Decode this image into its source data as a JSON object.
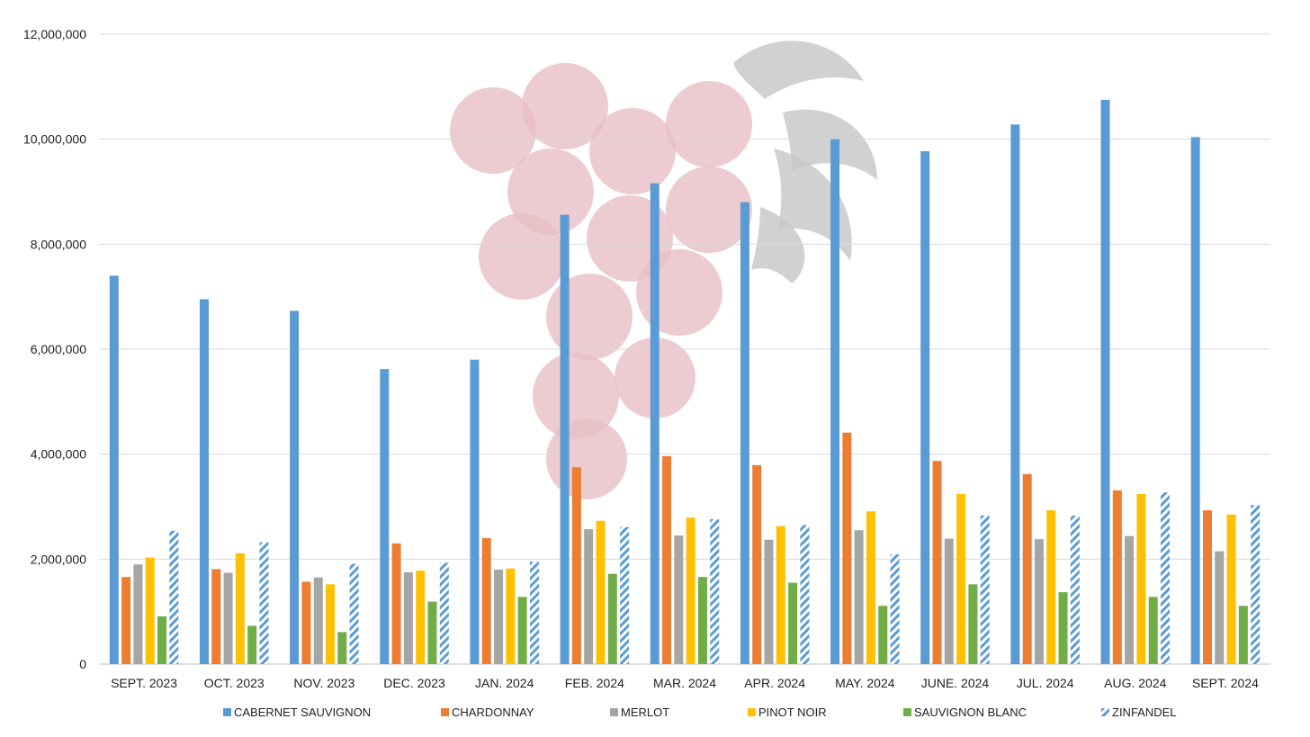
{
  "chart_data": {
    "type": "bar",
    "categories": [
      "SEPT. 2023",
      "OCT. 2023",
      "NOV. 2023",
      "DEC. 2023",
      "JAN. 2024",
      "FEB. 2024",
      "MAR. 2024",
      "APR. 2024",
      "MAY. 2024",
      "JUNE. 2024",
      "JUL. 2024",
      "AUG. 2024",
      "SEPT. 2024"
    ],
    "series": [
      {
        "name": "CABERNET SAUVIGNON",
        "color": "#5B9BD5",
        "pattern": "solid",
        "values": [
          7400000,
          6950000,
          6730000,
          5620000,
          5800000,
          8560000,
          9160000,
          8800000,
          10000000,
          9770000,
          10280000,
          10750000,
          10040000
        ]
      },
      {
        "name": "CHARDONNAY",
        "color": "#ED7D31",
        "pattern": "solid",
        "values": [
          1660000,
          1810000,
          1570000,
          2300000,
          2400000,
          3750000,
          3960000,
          3790000,
          4410000,
          3870000,
          3620000,
          3310000,
          2930000
        ]
      },
      {
        "name": "MERLOT",
        "color": "#A5A5A5",
        "pattern": "solid",
        "values": [
          1900000,
          1740000,
          1650000,
          1750000,
          1800000,
          2570000,
          2450000,
          2370000,
          2550000,
          2390000,
          2380000,
          2440000,
          2150000
        ]
      },
      {
        "name": "PINOT NOIR",
        "color": "#FFC000",
        "pattern": "solid",
        "values": [
          2030000,
          2110000,
          1520000,
          1780000,
          1820000,
          2730000,
          2790000,
          2630000,
          2910000,
          3240000,
          2930000,
          3240000,
          2850000
        ]
      },
      {
        "name": "SAUVIGNON BLANC",
        "color": "#70AD47",
        "pattern": "solid",
        "values": [
          910000,
          730000,
          610000,
          1190000,
          1280000,
          1720000,
          1660000,
          1550000,
          1110000,
          1520000,
          1370000,
          1280000,
          1110000
        ]
      },
      {
        "name": "ZINFANDEL",
        "color": "#5B9BD5",
        "pattern": "hatched",
        "values": [
          2540000,
          2320000,
          1910000,
          1930000,
          1950000,
          2610000,
          2760000,
          2650000,
          2090000,
          2830000,
          2830000,
          3270000,
          3030000
        ]
      }
    ],
    "ylim": [
      0,
      12000000
    ],
    "yticks": [
      0,
      2000000,
      4000000,
      6000000,
      8000000,
      10000000,
      12000000
    ],
    "ytick_labels": [
      "0",
      "2,000,000",
      "4,000,000",
      "6,000,000",
      "8,000,000",
      "10,000,000",
      "12,000,000"
    ],
    "grid": true,
    "legend_position": "bottom",
    "xlabel": "",
    "ylabel": "",
    "title": ""
  },
  "watermark": {
    "description": "grape cluster",
    "grape_color": "#E7BFC4",
    "leaf_color": "#C9C9C9"
  },
  "colors": {
    "gridline": "#D9D9D9",
    "axis": "#BFBFBF"
  }
}
